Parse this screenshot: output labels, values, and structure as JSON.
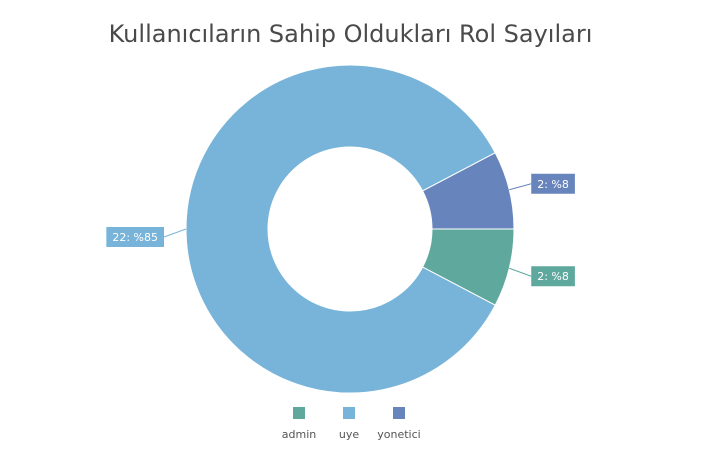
{
  "chart_data": {
    "type": "pie",
    "subtype": "donut",
    "title": "Kullanıcıların Sahip Oldukları Rol Sayıları",
    "categories": [
      "admin",
      "uye",
      "yonetici"
    ],
    "values": [
      2,
      22,
      2
    ],
    "labels": [
      "2: %8",
      "22: %85",
      "2: %8"
    ],
    "colors": [
      "#5fa89e",
      "#78b4d9",
      "#6784bd"
    ],
    "legend": "bottom"
  }
}
